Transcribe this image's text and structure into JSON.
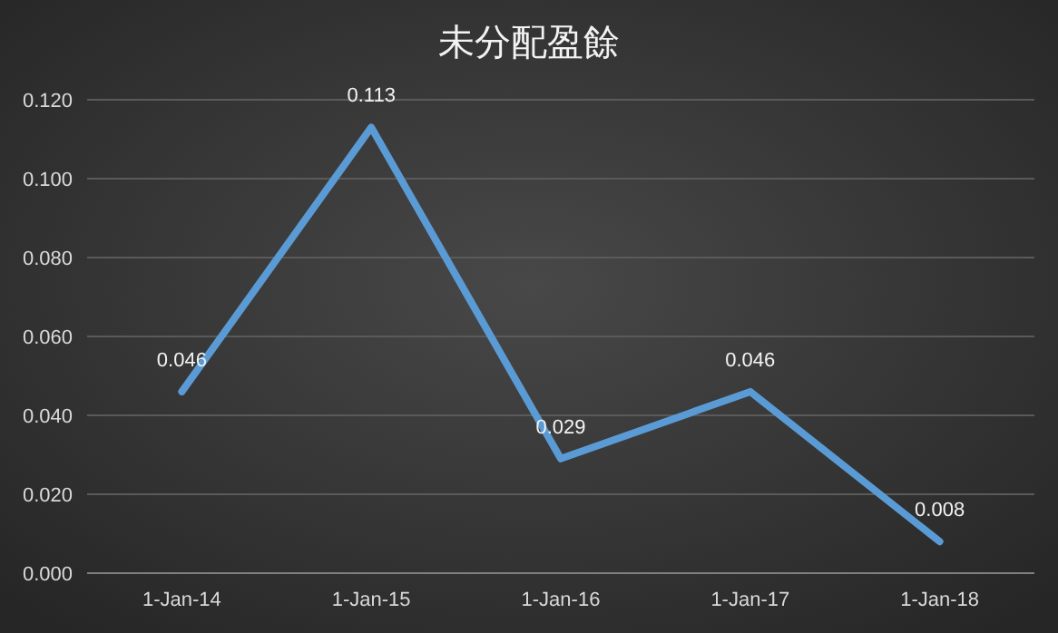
{
  "chart_data": {
    "type": "line",
    "title": "未分配盈餘",
    "categories": [
      "1-Jan-14",
      "1-Jan-15",
      "1-Jan-16",
      "1-Jan-17",
      "1-Jan-18"
    ],
    "series": [
      {
        "color": "#5b9bd5",
        "values": [
          0.046,
          0.113,
          0.029,
          0.046,
          0.008
        ]
      }
    ],
    "ylim": [
      0,
      0.12
    ],
    "yticks": [
      {
        "value": 0,
        "label": "0.000"
      },
      {
        "value": 0.02,
        "label": "0.020"
      },
      {
        "value": 0.04,
        "label": "0.040"
      },
      {
        "value": 0.06,
        "label": "0.060"
      },
      {
        "value": 0.08,
        "label": "0.080"
      },
      {
        "value": 0.1,
        "label": "0.100"
      },
      {
        "value": 0.12,
        "label": "0.120"
      }
    ],
    "grid": "y",
    "data_labels": true,
    "marker": "none",
    "line_style": "solid"
  }
}
